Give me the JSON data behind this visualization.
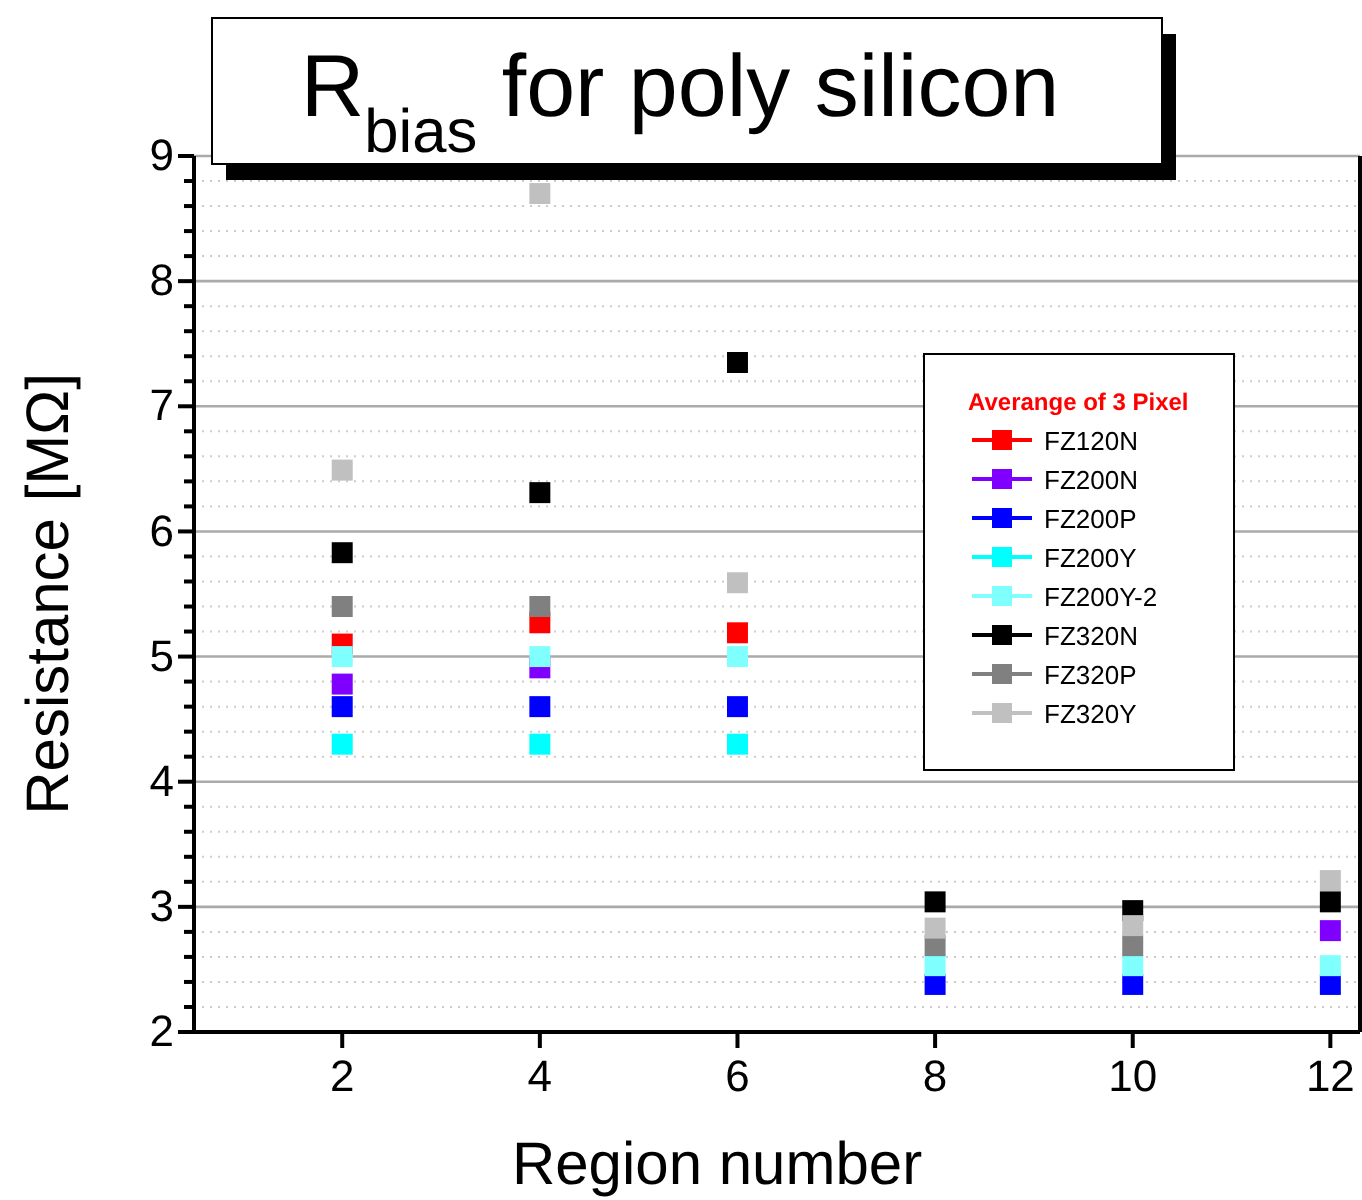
{
  "chart_data": {
    "type": "scatter",
    "title": "R$_{bias}$ for poly silicon",
    "xlabel": "Region number",
    "ylabel": "Resistance [MΩ]",
    "legend_title": "Averange of 3 Pixel",
    "legend": "right",
    "marker": "square",
    "grid": "y",
    "x": [
      2,
      4,
      6,
      8,
      10,
      12
    ],
    "xlim": [
      0.5,
      12.3
    ],
    "xticks": [
      2,
      4,
      6,
      8,
      10,
      12
    ],
    "ylim": [
      2,
      9
    ],
    "yticks": [
      2,
      {
        "value": 2.2,
        "label": null
      },
      {
        "value": 2.4,
        "label": null
      },
      {
        "value": 2.6,
        "label": null
      },
      {
        "value": 2.8,
        "label": null
      },
      3,
      {
        "value": 3.2,
        "label": null
      },
      {
        "value": 3.4,
        "label": null
      },
      {
        "value": 3.6,
        "label": null
      },
      {
        "value": 3.8,
        "label": null
      },
      4,
      {
        "value": 4.2,
        "label": null
      },
      {
        "value": 4.4,
        "label": null
      },
      {
        "value": 4.6,
        "label": null
      },
      {
        "value": 4.8,
        "label": null
      },
      5,
      {
        "value": 5.2,
        "label": null
      },
      {
        "value": 5.4,
        "label": null
      },
      {
        "value": 5.6,
        "label": null
      },
      {
        "value": 5.8,
        "label": null
      },
      6,
      {
        "value": 6.2,
        "label": null
      },
      {
        "value": 6.4,
        "label": null
      },
      {
        "value": 6.6,
        "label": null
      },
      {
        "value": 6.8,
        "label": null
      },
      7,
      {
        "value": 7.2,
        "label": null
      },
      {
        "value": 7.4,
        "label": null
      },
      {
        "value": 7.6,
        "label": null
      },
      {
        "value": 7.8,
        "label": null
      },
      8,
      {
        "value": 8.2,
        "label": null
      },
      {
        "value": 8.4,
        "label": null
      },
      {
        "value": 8.6,
        "label": null
      },
      {
        "value": 8.8,
        "label": null
      },
      9
    ],
    "series": [
      {
        "name": "FZ120N",
        "color": "#ff0000",
        "values": [
          5.1,
          5.27,
          5.19,
          null,
          null,
          null
        ]
      },
      {
        "name": "FZ200N",
        "color": "#8000ff",
        "values": [
          4.78,
          4.91,
          null,
          null,
          null,
          2.81
        ]
      },
      {
        "name": "FZ200P",
        "color": "#0000ff",
        "values": [
          4.6,
          4.6,
          4.6,
          2.38,
          2.38,
          2.38
        ]
      },
      {
        "name": "FZ200Y",
        "color": "#00ffff",
        "values": [
          4.3,
          4.3,
          4.3,
          null,
          null,
          null
        ]
      },
      {
        "name": "FZ200Y-2",
        "color": "#80ffff",
        "values": [
          5.0,
          5.0,
          5.0,
          2.53,
          2.53,
          2.53
        ]
      },
      {
        "name": "FZ320N",
        "color": "#000000",
        "values": [
          5.83,
          6.31,
          7.35,
          3.04,
          2.97,
          3.04
        ]
      },
      {
        "name": "FZ320P",
        "color": "#808080",
        "values": [
          5.4,
          5.4,
          null,
          2.69,
          2.69,
          null
        ]
      },
      {
        "name": "FZ320Y",
        "color": "#c0c0c0",
        "values": [
          6.49,
          8.7,
          5.59,
          2.83,
          2.85,
          3.21
        ]
      }
    ]
  }
}
